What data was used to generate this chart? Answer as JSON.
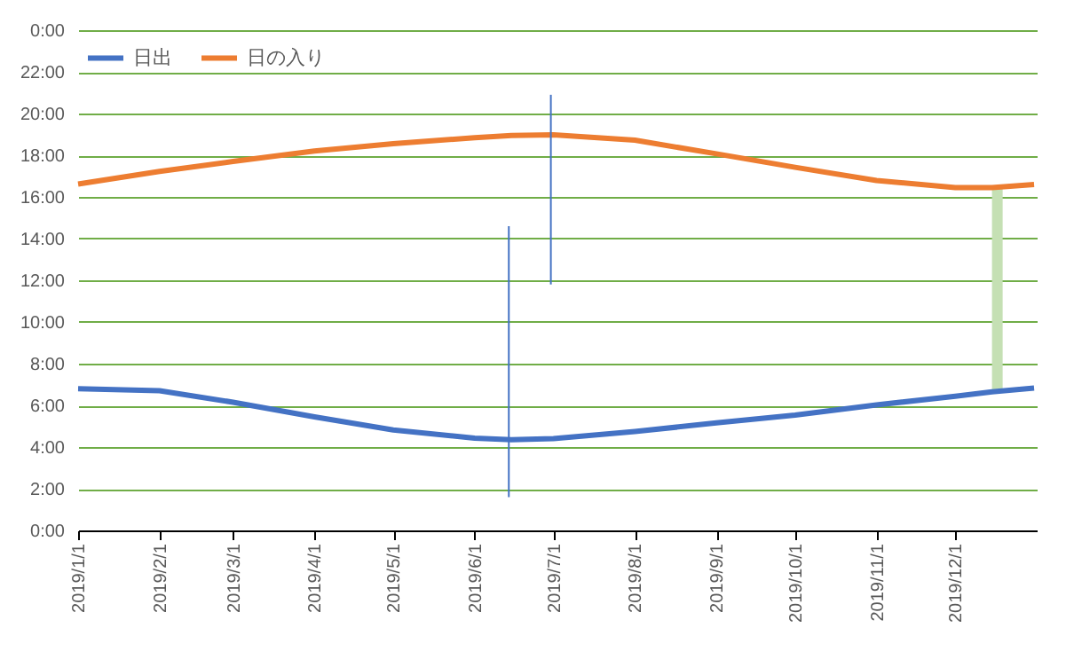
{
  "chart_data": {
    "type": "line",
    "x": [
      "2019-01-01",
      "2019-02-01",
      "2019-03-01",
      "2019-04-01",
      "2019-05-01",
      "2019-06-01",
      "2019-06-15",
      "2019-07-01",
      "2019-08-01",
      "2019-09-01",
      "2019-10-01",
      "2019-11-01",
      "2019-12-01",
      "2019-12-15",
      "2019-12-31"
    ],
    "series": [
      {
        "name": "日出",
        "color": "#4472c4",
        "values": [
          6.8,
          6.7,
          6.15,
          5.45,
          4.82,
          4.43,
          4.35,
          4.4,
          4.74,
          5.16,
          5.53,
          6.02,
          6.44,
          6.65,
          6.83
        ]
      },
      {
        "name": "日の入り",
        "color": "#ed7d31",
        "values": [
          16.62,
          17.22,
          17.7,
          18.2,
          18.55,
          18.84,
          18.95,
          18.98,
          18.72,
          18.07,
          17.42,
          16.79,
          16.45,
          16.45,
          16.6
        ]
      },
      {
        "type": "line",
        "color": "#4472c4",
        "x": [
          "2019-06-14",
          "2019-06-14"
        ],
        "values": [
          1.6,
          14.6
        ]
      },
      {
        "type": "line",
        "color": "#4472c4",
        "x": [
          "2019-06-30",
          "2019-06-30"
        ],
        "values": [
          11.8,
          20.9
        ]
      },
      {
        "type": "bar",
        "color": "#c5e0b4",
        "x": [
          "2019-12-17"
        ],
        "base": [
          6.7
        ],
        "values": [
          9.7
        ]
      }
    ],
    "xlim": [
      "2019-01-01",
      "2020-01-01"
    ],
    "xticks": [
      {
        "value": "2019-01-01",
        "label": "2019/1/1"
      },
      {
        "value": "2019-02-01",
        "label": "2019/2/1"
      },
      {
        "value": "2019-03-01",
        "label": "2019/3/1"
      },
      {
        "value": "2019-04-01",
        "label": "2019/4/1"
      },
      {
        "value": "2019-05-01",
        "label": "2019/5/1"
      },
      {
        "value": "2019-06-01",
        "label": "2019/6/1"
      },
      {
        "value": "2019-07-01",
        "label": "2019/7/1"
      },
      {
        "value": "2019-08-01",
        "label": "2019/8/1"
      },
      {
        "value": "2019-09-01",
        "label": "2019/9/1"
      },
      {
        "value": "2019-10-01",
        "label": "2019/10/1"
      },
      {
        "value": "2019-11-01",
        "label": "2019/11/1"
      },
      {
        "value": "2019-12-01",
        "label": "2019/12/1"
      }
    ],
    "ylim": [
      0,
      24
    ],
    "yticks": [
      {
        "value": 0,
        "label": "0:00"
      },
      {
        "value": 2,
        "label": "2:00"
      },
      {
        "value": 4,
        "label": "4:00"
      },
      {
        "value": 6,
        "label": "6:00"
      },
      {
        "value": 8,
        "label": "8:00"
      },
      {
        "value": 10,
        "label": "10:00"
      },
      {
        "value": 12,
        "label": "12:00"
      },
      {
        "value": 14,
        "label": "14:00"
      },
      {
        "value": 16,
        "label": "16:00"
      },
      {
        "value": 18,
        "label": "18:00"
      },
      {
        "value": 20,
        "label": "20:00"
      },
      {
        "value": 22,
        "label": "22:00"
      },
      {
        "value": 24,
        "label": "0:00"
      }
    ],
    "grid": "y",
    "legend": "top left"
  }
}
